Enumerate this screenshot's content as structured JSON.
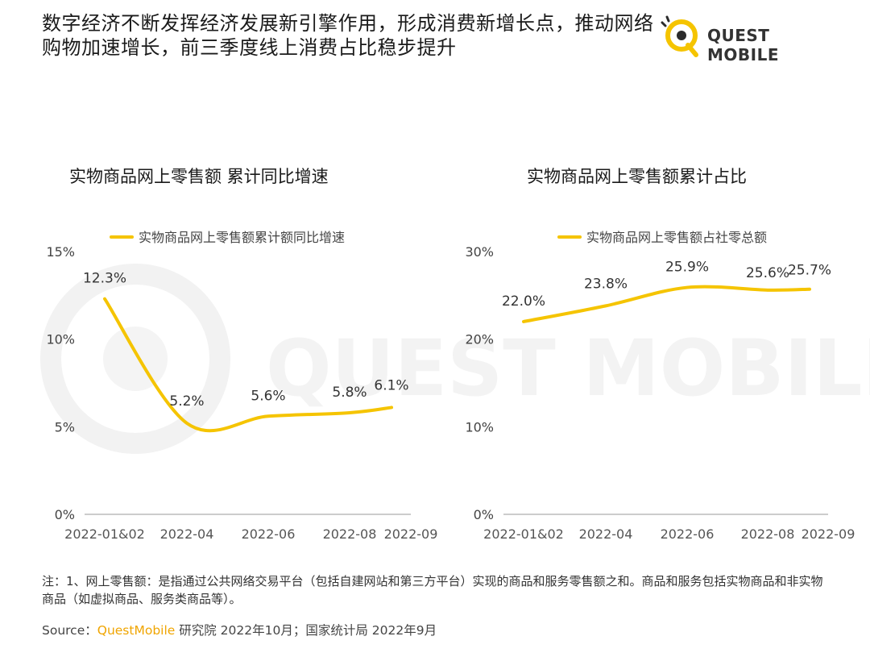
{
  "headline": "数字经济不断发挥经济发展新引擎作用，形成消费新增长点，推动网络购物加速增长，前三季度线上消费占比稳步提升",
  "logo": {
    "text": "QUEST MOBILE",
    "icon": "quest-mobile-q-icon",
    "color": "#f5c400"
  },
  "watermark": "QUEST MOBILE",
  "colors": {
    "line": "#f5c400",
    "axis": "#999999",
    "text": "#333333"
  },
  "chart_data": [
    {
      "type": "line",
      "title": "实物商品网上零售额 累计同比增速",
      "legend": "实物商品网上零售额累计额同比增速",
      "legend_position": "top",
      "categories": [
        "2022-01&02",
        "2022-04",
        "2022-06",
        "2022-08",
        "2022-09"
      ],
      "y_ticks": [
        "15%",
        "10%",
        "5%",
        "0%"
      ],
      "ylim": [
        0,
        15
      ],
      "grid": false,
      "series": [
        {
          "name": "实物商品网上零售额累计额同比增速",
          "points": [
            {
              "month": "2022-01&02",
              "value": 12.3,
              "label": "12.3%"
            },
            {
              "month": "2022-04",
              "value": 5.2,
              "label": "5.2%"
            },
            {
              "month": "2022-06",
              "value": 5.6,
              "label": "5.6%"
            },
            {
              "month": "2022-08",
              "value": 5.8,
              "label": "5.8%"
            },
            {
              "month": "2022-09",
              "value": 6.1,
              "label": "6.1%"
            }
          ]
        }
      ]
    },
    {
      "type": "line",
      "title": "实物商品网上零售额累计占比",
      "legend": "实物商品网上零售额占社零总额",
      "legend_position": "top",
      "categories": [
        "2022-01&02",
        "2022-04",
        "2022-06",
        "2022-08",
        "2022-09"
      ],
      "y_ticks": [
        "30%",
        "20%",
        "10%",
        "0%"
      ],
      "ylim": [
        0,
        30
      ],
      "grid": false,
      "series": [
        {
          "name": "实物商品网上零售额占社零总额",
          "points": [
            {
              "month": "2022-01&02",
              "value": 22.0,
              "label": "22.0%"
            },
            {
              "month": "2022-04",
              "value": 23.8,
              "label": "23.8%"
            },
            {
              "month": "2022-06",
              "value": 25.9,
              "label": "25.9%"
            },
            {
              "month": "2022-08",
              "value": 25.6,
              "label": "25.6%"
            },
            {
              "month": "2022-09",
              "value": 25.7,
              "label": "25.7%"
            }
          ]
        }
      ]
    }
  ],
  "note": "注：1、网上零售额：是指通过公共网络交易平台（包括自建网站和第三方平台）实现的商品和服务零售额之和。商品和服务包括实物商品和非实物商品（如虚拟商品、服务类商品等）。",
  "source": {
    "prefix": "Source：",
    "brand": "QuestMobile",
    "rest": " 研究院 2022年10月；国家统计局 2022年9月"
  }
}
